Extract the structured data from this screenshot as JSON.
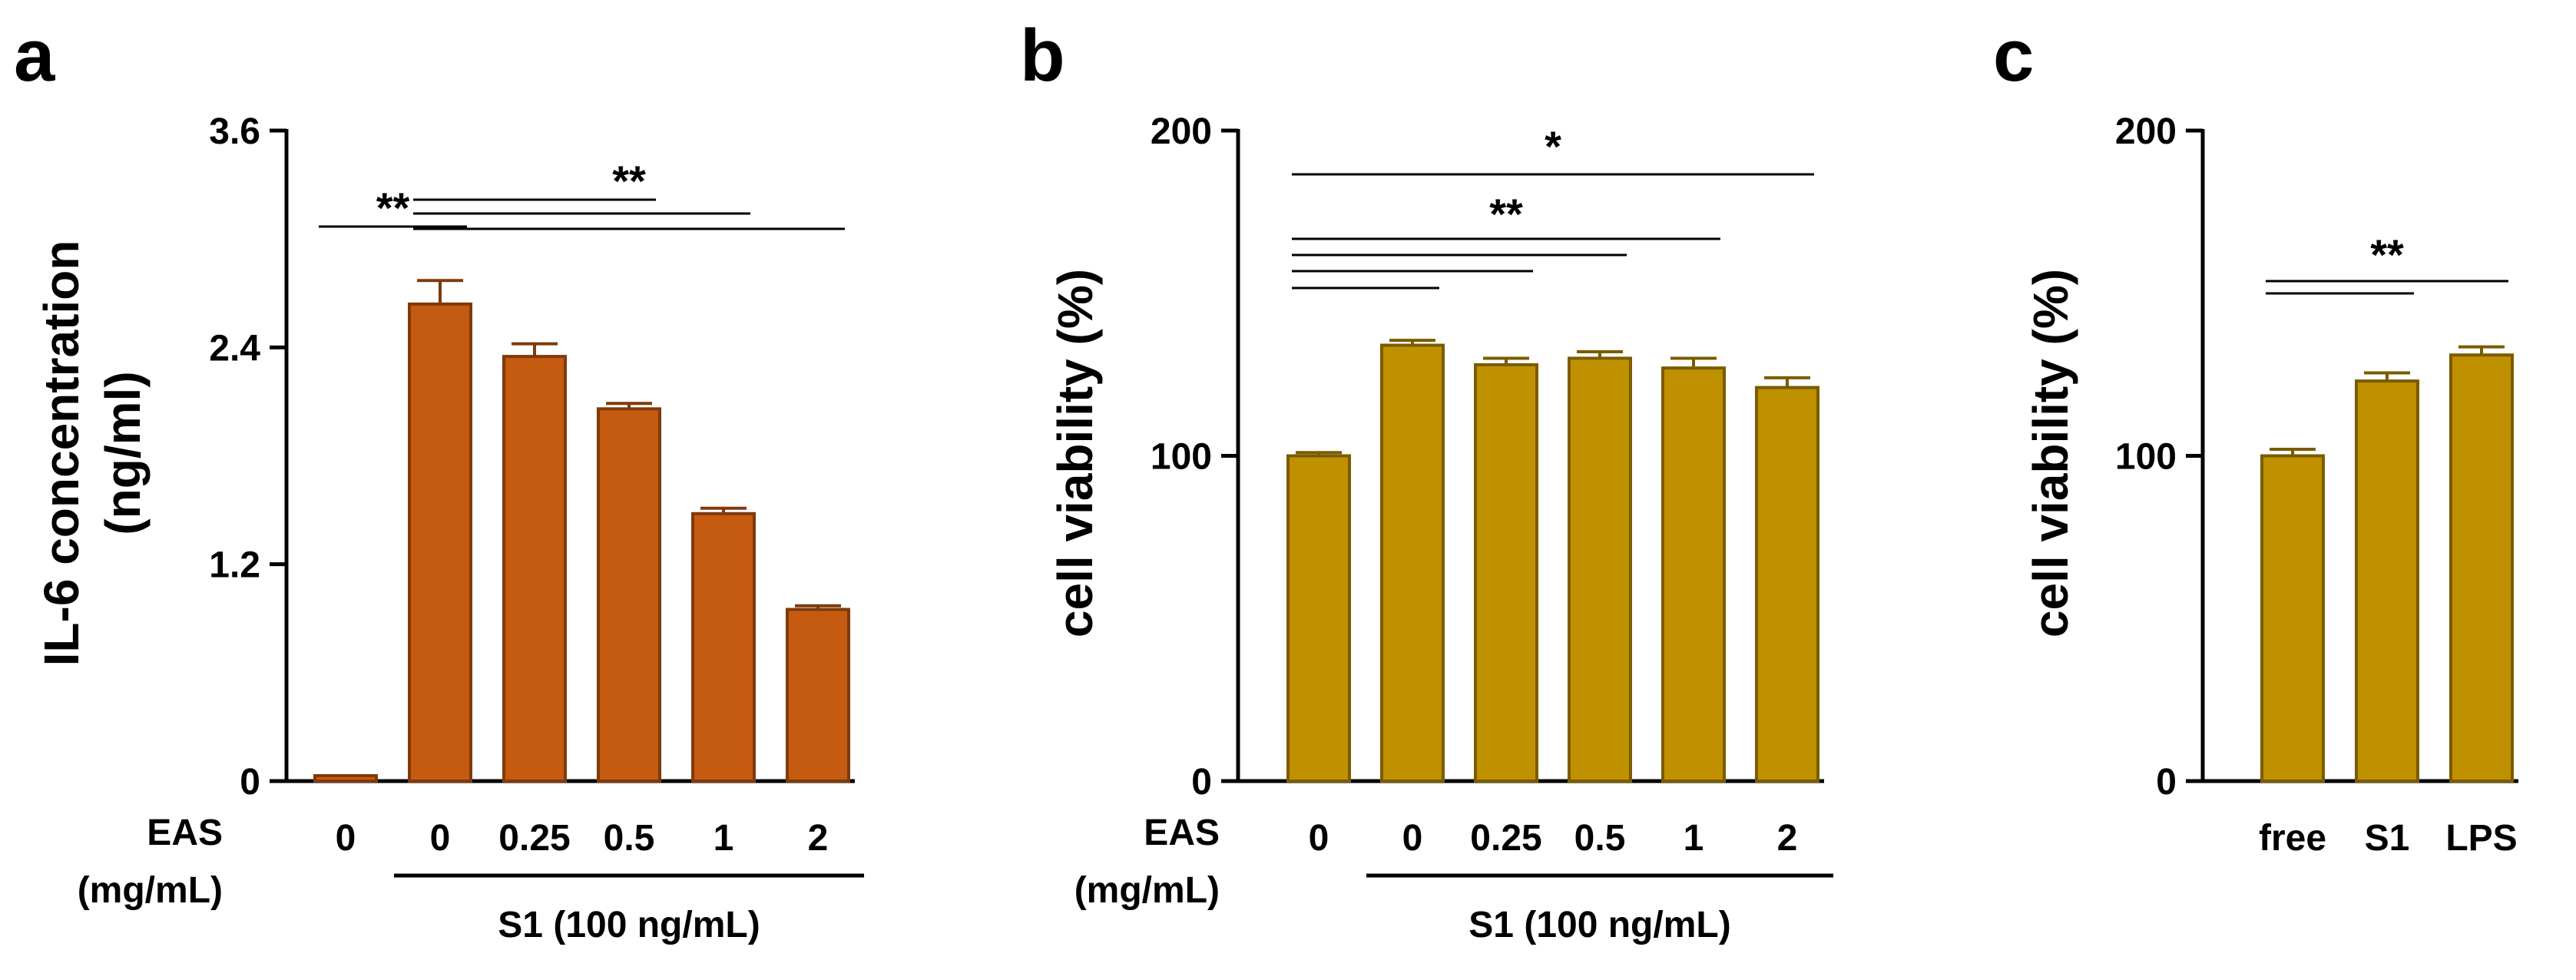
{
  "chart_data": [
    {
      "type": "bar",
      "panel": "a",
      "ylabel_lines": [
        "IL-6 concentration",
        "(ng/ml)"
      ],
      "ylim": [
        0,
        3.6
      ],
      "yticks": [
        "0",
        "1.2",
        "2.4",
        "3.6"
      ],
      "row_label_lines": [
        "EAS",
        "(mg/mL)"
      ],
      "categories": [
        "0",
        "0",
        "0.25",
        "0.5",
        "1",
        "2"
      ],
      "values": [
        0.03,
        2.64,
        2.35,
        2.06,
        1.48,
        0.95
      ],
      "errors": [
        0.0,
        0.13,
        0.07,
        0.03,
        0.03,
        0.02
      ],
      "group_label": "S1 (100 ng/mL)",
      "group_categories": [
        1,
        5
      ],
      "bar_color": "#c55a11",
      "bar_edge": "#7f3a0b",
      "annotations": [
        {
          "label": "**",
          "comparisons": [
            [
              0,
              1
            ]
          ]
        },
        {
          "label": "**",
          "comparisons": [
            [
              1,
              3
            ],
            [
              1,
              4
            ],
            [
              1,
              5
            ]
          ]
        }
      ]
    },
    {
      "type": "bar",
      "panel": "b",
      "ylabel_lines": [
        "cell viability (%)"
      ],
      "ylim": [
        0,
        200
      ],
      "yticks": [
        "0",
        "100",
        "200"
      ],
      "row_label_lines": [
        "EAS",
        "(mg/mL)"
      ],
      "categories": [
        "0",
        "0",
        "0.25",
        "0.5",
        "1",
        "2"
      ],
      "values": [
        100,
        134,
        128,
        130,
        127,
        121
      ],
      "errors": [
        1,
        1.5,
        2,
        2,
        3,
        3
      ],
      "group_label": "S1 (100 ng/mL)",
      "group_categories": [
        1,
        5
      ],
      "bar_color": "#bf9000",
      "bar_edge": "#7a5c00",
      "annotations": [
        {
          "label": "*",
          "comparisons": [
            [
              0,
              5
            ]
          ]
        },
        {
          "label": "**",
          "comparisons": [
            [
              0,
              1
            ],
            [
              0,
              2
            ],
            [
              0,
              3
            ],
            [
              0,
              4
            ]
          ]
        }
      ]
    },
    {
      "type": "bar",
      "panel": "c",
      "ylabel_lines": [
        "cell viability (%)"
      ],
      "ylim": [
        0,
        200
      ],
      "yticks": [
        "0",
        "100",
        "200"
      ],
      "categories": [
        "free",
        "S1",
        "LPS"
      ],
      "values": [
        100,
        123,
        131
      ],
      "errors": [
        2,
        2.5,
        2.5
      ],
      "bar_color": "#bf9000",
      "bar_edge": "#7a5c00",
      "annotations": [
        {
          "label": "**",
          "comparisons": [
            [
              0,
              1
            ],
            [
              0,
              2
            ]
          ]
        }
      ]
    }
  ]
}
